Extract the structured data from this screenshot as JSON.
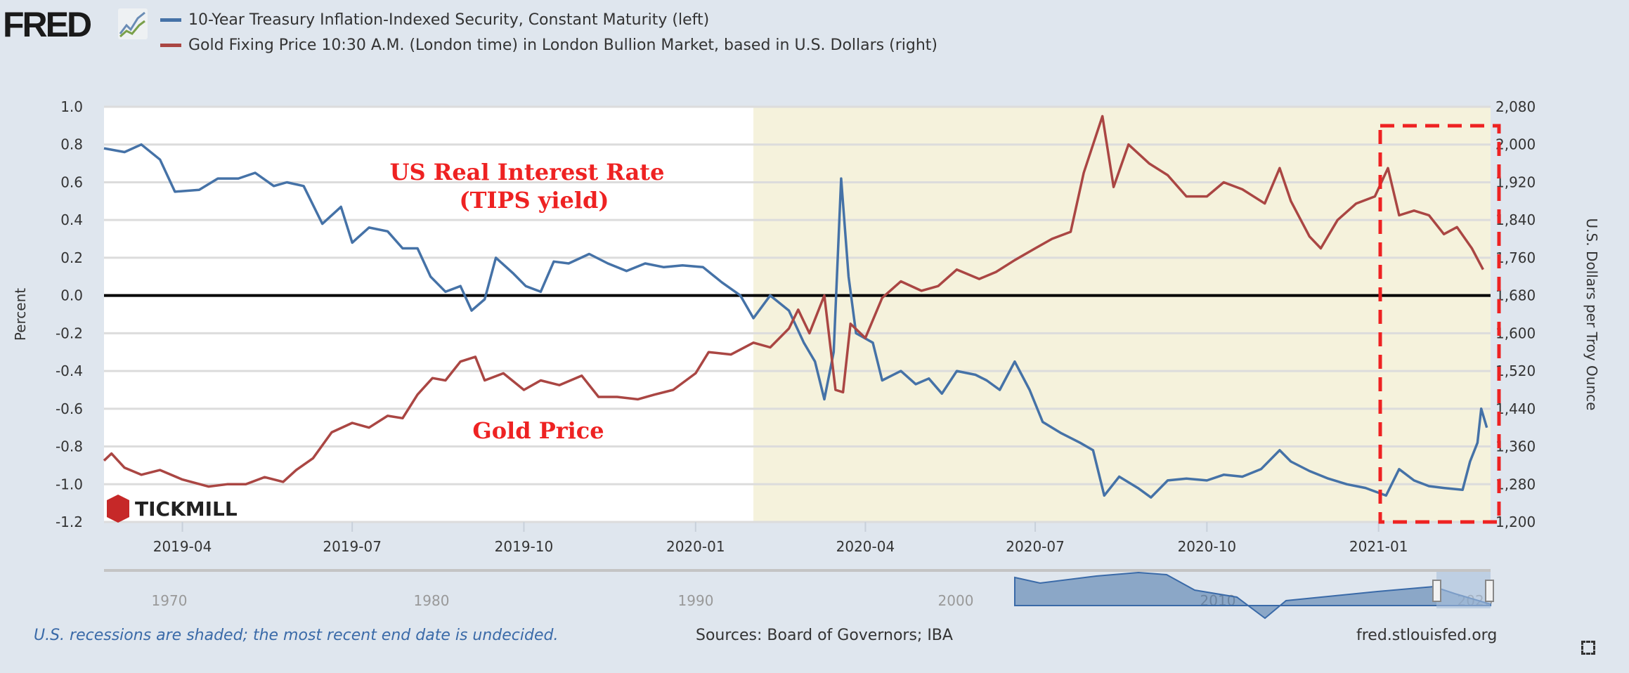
{
  "header": {
    "logo": "FRED",
    "legend": [
      {
        "label": "10-Year Treasury Inflation-Indexed Security, Constant Maturity (left)",
        "color": "#4572a7"
      },
      {
        "label": "Gold Fixing Price 10:30 A.M. (London time) in London Bullion Market, based in U.S. Dollars (right)",
        "color": "#aa4643"
      }
    ]
  },
  "chart_data": {
    "type": "line",
    "xlabel": "",
    "ylabel": "Percent",
    "y2label": "U.S. Dollars per Troy Ounce",
    "xlim": [
      "2019-02-18",
      "2021-03-02"
    ],
    "ylim": [
      -1.2,
      1.0
    ],
    "y2lim": [
      1200,
      2080
    ],
    "x_ticks": [
      "2019-04",
      "2019-07",
      "2019-10",
      "2020-01",
      "2020-04",
      "2020-07",
      "2020-10",
      "2021-01"
    ],
    "y_ticks": [
      "1.0",
      "0.8",
      "0.6",
      "0.4",
      "0.2",
      "0.0",
      "-0.2",
      "-0.4",
      "-0.6",
      "-0.8",
      "-1.0",
      "-1.2"
    ],
    "y2_ticks": [
      "2,080",
      "2,000",
      "1,920",
      "1,840",
      "1,760",
      "1,680",
      "1,600",
      "1,520",
      "1,440",
      "1,360",
      "1,280",
      "1,200"
    ],
    "grid": true,
    "recession_shading": {
      "start": "2020-02-01",
      "end": "2021-03-02",
      "color": "#f5f2dc"
    },
    "annotations": {
      "rate_title": "US Real Interest Rate",
      "rate_sub": "(TIPS yield)",
      "gold": "Gold Price",
      "brand": "TICKMILL"
    },
    "series": [
      {
        "name": "10-Year Treasury Inflation-Indexed Security, Constant Maturity (left)",
        "axis": "left",
        "color": "#4572a7",
        "points": [
          [
            "2019-02-18",
            0.78
          ],
          [
            "2019-03-01",
            0.76
          ],
          [
            "2019-03-10",
            0.8
          ],
          [
            "2019-03-20",
            0.72
          ],
          [
            "2019-03-28",
            0.55
          ],
          [
            "2019-04-10",
            0.56
          ],
          [
            "2019-04-20",
            0.62
          ],
          [
            "2019-05-01",
            0.62
          ],
          [
            "2019-05-10",
            0.65
          ],
          [
            "2019-05-20",
            0.58
          ],
          [
            "2019-05-27",
            0.6
          ],
          [
            "2019-06-05",
            0.58
          ],
          [
            "2019-06-15",
            0.38
          ],
          [
            "2019-06-25",
            0.47
          ],
          [
            "2019-07-01",
            0.28
          ],
          [
            "2019-07-10",
            0.36
          ],
          [
            "2019-07-20",
            0.34
          ],
          [
            "2019-07-28",
            0.25
          ],
          [
            "2019-08-05",
            0.25
          ],
          [
            "2019-08-12",
            0.1
          ],
          [
            "2019-08-20",
            0.02
          ],
          [
            "2019-08-28",
            0.05
          ],
          [
            "2019-09-03",
            -0.08
          ],
          [
            "2019-09-10",
            -0.02
          ],
          [
            "2019-09-16",
            0.2
          ],
          [
            "2019-09-25",
            0.12
          ],
          [
            "2019-10-02",
            0.05
          ],
          [
            "2019-10-10",
            0.02
          ],
          [
            "2019-10-17",
            0.18
          ],
          [
            "2019-10-25",
            0.17
          ],
          [
            "2019-11-05",
            0.22
          ],
          [
            "2019-11-15",
            0.17
          ],
          [
            "2019-11-25",
            0.13
          ],
          [
            "2019-12-05",
            0.17
          ],
          [
            "2019-12-15",
            0.15
          ],
          [
            "2019-12-25",
            0.16
          ],
          [
            "2020-01-05",
            0.15
          ],
          [
            "2020-01-15",
            0.07
          ],
          [
            "2020-01-25",
            0.0
          ],
          [
            "2020-02-01",
            -0.12
          ],
          [
            "2020-02-10",
            0.0
          ],
          [
            "2020-02-20",
            -0.08
          ],
          [
            "2020-02-28",
            -0.25
          ],
          [
            "2020-03-05",
            -0.35
          ],
          [
            "2020-03-10",
            -0.55
          ],
          [
            "2020-03-15",
            -0.3
          ],
          [
            "2020-03-19",
            0.62
          ],
          [
            "2020-03-23",
            0.1
          ],
          [
            "2020-03-27",
            -0.2
          ],
          [
            "2020-04-05",
            -0.25
          ],
          [
            "2020-04-10",
            -0.45
          ],
          [
            "2020-04-20",
            -0.4
          ],
          [
            "2020-04-28",
            -0.47
          ],
          [
            "2020-05-05",
            -0.44
          ],
          [
            "2020-05-12",
            -0.52
          ],
          [
            "2020-05-20",
            -0.4
          ],
          [
            "2020-05-30",
            -0.42
          ],
          [
            "2020-06-05",
            -0.45
          ],
          [
            "2020-06-12",
            -0.5
          ],
          [
            "2020-06-20",
            -0.35
          ],
          [
            "2020-06-28",
            -0.5
          ],
          [
            "2020-07-05",
            -0.67
          ],
          [
            "2020-07-15",
            -0.73
          ],
          [
            "2020-07-25",
            -0.78
          ],
          [
            "2020-08-01",
            -0.82
          ],
          [
            "2020-08-07",
            -1.06
          ],
          [
            "2020-08-15",
            -0.96
          ],
          [
            "2020-08-25",
            -1.02
          ],
          [
            "2020-09-01",
            -1.07
          ],
          [
            "2020-09-10",
            -0.98
          ],
          [
            "2020-09-20",
            -0.97
          ],
          [
            "2020-10-01",
            -0.98
          ],
          [
            "2020-10-10",
            -0.95
          ],
          [
            "2020-10-20",
            -0.96
          ],
          [
            "2020-10-30",
            -0.92
          ],
          [
            "2020-11-09",
            -0.82
          ],
          [
            "2020-11-15",
            -0.88
          ],
          [
            "2020-11-25",
            -0.93
          ],
          [
            "2020-12-05",
            -0.97
          ],
          [
            "2020-12-15",
            -1.0
          ],
          [
            "2020-12-25",
            -1.02
          ],
          [
            "2021-01-05",
            -1.06
          ],
          [
            "2021-01-12",
            -0.92
          ],
          [
            "2021-01-20",
            -0.98
          ],
          [
            "2021-01-28",
            -1.01
          ],
          [
            "2021-02-05",
            -1.02
          ],
          [
            "2021-02-15",
            -1.03
          ],
          [
            "2021-02-19",
            -0.88
          ],
          [
            "2021-02-23",
            -0.78
          ],
          [
            "2021-02-25",
            -0.6
          ],
          [
            "2021-02-28",
            -0.7
          ]
        ]
      },
      {
        "name": "Gold Fixing Price 10:30 A.M. (London time) in London Bullion Market, based in U.S. Dollars (right)",
        "axis": "right",
        "color": "#aa4643",
        "points": [
          [
            "2019-02-18",
            1330
          ],
          [
            "2019-02-22",
            1345
          ],
          [
            "2019-03-01",
            1315
          ],
          [
            "2019-03-10",
            1300
          ],
          [
            "2019-03-20",
            1310
          ],
          [
            "2019-04-01",
            1290
          ],
          [
            "2019-04-15",
            1275
          ],
          [
            "2019-04-25",
            1280
          ],
          [
            "2019-05-05",
            1280
          ],
          [
            "2019-05-15",
            1295
          ],
          [
            "2019-05-25",
            1285
          ],
          [
            "2019-06-01",
            1310
          ],
          [
            "2019-06-10",
            1335
          ],
          [
            "2019-06-20",
            1390
          ],
          [
            "2019-07-01",
            1410
          ],
          [
            "2019-07-10",
            1400
          ],
          [
            "2019-07-20",
            1425
          ],
          [
            "2019-07-28",
            1420
          ],
          [
            "2019-08-05",
            1470
          ],
          [
            "2019-08-13",
            1505
          ],
          [
            "2019-08-20",
            1500
          ],
          [
            "2019-08-28",
            1540
          ],
          [
            "2019-09-05",
            1550
          ],
          [
            "2019-09-10",
            1500
          ],
          [
            "2019-09-20",
            1515
          ],
          [
            "2019-10-01",
            1480
          ],
          [
            "2019-10-10",
            1500
          ],
          [
            "2019-10-20",
            1490
          ],
          [
            "2019-11-01",
            1510
          ],
          [
            "2019-11-10",
            1465
          ],
          [
            "2019-11-20",
            1465
          ],
          [
            "2019-12-01",
            1460
          ],
          [
            "2019-12-10",
            1470
          ],
          [
            "2019-12-20",
            1480
          ],
          [
            "2020-01-01",
            1515
          ],
          [
            "2020-01-08",
            1560
          ],
          [
            "2020-01-20",
            1555
          ],
          [
            "2020-02-01",
            1580
          ],
          [
            "2020-02-10",
            1570
          ],
          [
            "2020-02-20",
            1610
          ],
          [
            "2020-02-25",
            1650
          ],
          [
            "2020-03-02",
            1600
          ],
          [
            "2020-03-10",
            1680
          ],
          [
            "2020-03-16",
            1480
          ],
          [
            "2020-03-20",
            1475
          ],
          [
            "2020-03-24",
            1620
          ],
          [
            "2020-04-01",
            1590
          ],
          [
            "2020-04-10",
            1675
          ],
          [
            "2020-04-20",
            1710
          ],
          [
            "2020-05-01",
            1690
          ],
          [
            "2020-05-10",
            1700
          ],
          [
            "2020-05-20",
            1735
          ],
          [
            "2020-06-01",
            1715
          ],
          [
            "2020-06-10",
            1730
          ],
          [
            "2020-06-20",
            1755
          ],
          [
            "2020-07-01",
            1780
          ],
          [
            "2020-07-10",
            1800
          ],
          [
            "2020-07-20",
            1815
          ],
          [
            "2020-07-27",
            1940
          ],
          [
            "2020-08-06",
            2060
          ],
          [
            "2020-08-12",
            1910
          ],
          [
            "2020-08-20",
            2000
          ],
          [
            "2020-08-31",
            1960
          ],
          [
            "2020-09-10",
            1935
          ],
          [
            "2020-09-20",
            1890
          ],
          [
            "2020-10-01",
            1890
          ],
          [
            "2020-10-10",
            1920
          ],
          [
            "2020-10-20",
            1905
          ],
          [
            "2020-11-01",
            1875
          ],
          [
            "2020-11-09",
            1950
          ],
          [
            "2020-11-15",
            1880
          ],
          [
            "2020-11-25",
            1805
          ],
          [
            "2020-12-01",
            1780
          ],
          [
            "2020-12-10",
            1840
          ],
          [
            "2020-12-20",
            1875
          ],
          [
            "2020-12-30",
            1890
          ],
          [
            "2021-01-06",
            1950
          ],
          [
            "2021-01-12",
            1850
          ],
          [
            "2021-01-20",
            1860
          ],
          [
            "2021-01-28",
            1850
          ],
          [
            "2021-02-05",
            1810
          ],
          [
            "2021-02-12",
            1825
          ],
          [
            "2021-02-20",
            1780
          ],
          [
            "2021-02-26",
            1735
          ]
        ]
      }
    ]
  },
  "navigator": {
    "labels": [
      "1970",
      "1980",
      "1990",
      "2000",
      "2010",
      "2020"
    ]
  },
  "footer": {
    "note": "U.S. recessions are shaded; the most recent end date is undecided.",
    "sources": "Sources: Board of Governors; IBA",
    "site": "fred.stlouisfed.org"
  }
}
